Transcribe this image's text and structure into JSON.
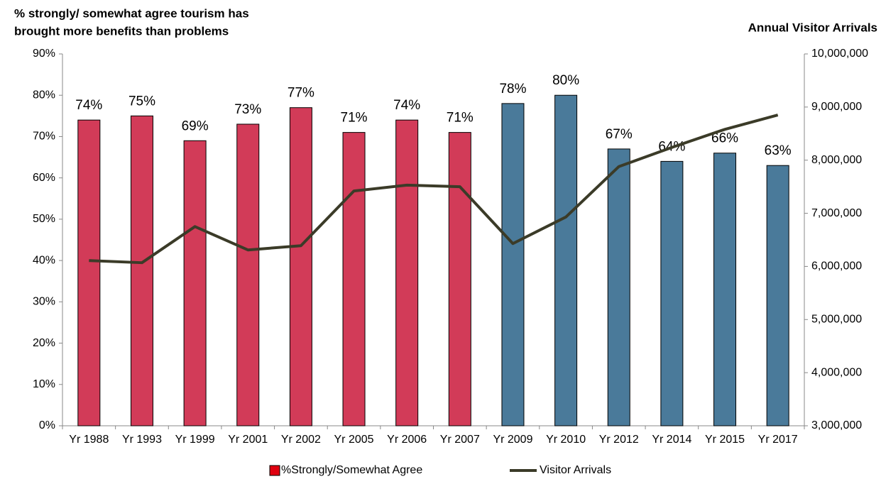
{
  "chart_data": {
    "type": "bar_line",
    "title": [
      "% strongly/ somewhat agree tourism has",
      "brought more benefits than problems"
    ],
    "y2_label": "Annual Visitor Arrivals",
    "categories": [
      "Yr 1988",
      "Yr 1993",
      "Yr 1999",
      "Yr 2001",
      "Yr 2002",
      "Yr 2005",
      "Yr 2006",
      "Yr 2007",
      "Yr 2009",
      "Yr 2010",
      "Yr 2012",
      "Yr 2014",
      "Yr 2015",
      "Yr 2017"
    ],
    "series": [
      {
        "name": "%Strongly/Somewhat Agree",
        "color": "#e00010",
        "type": "bar",
        "bar_colors": [
          "#d23b58",
          "#d23b58",
          "#d23b58",
          "#d23b58",
          "#d23b58",
          "#d23b58",
          "#d23b58",
          "#d23b58",
          "#4a7a9a",
          "#4a7a9a",
          "#4a7a9a",
          "#4a7a9a",
          "#4a7a9a",
          "#4a7a9a"
        ],
        "values": [
          74,
          75,
          69,
          73,
          77,
          71,
          74,
          71,
          78,
          80,
          67,
          64,
          66,
          63
        ],
        "value_labels": [
          "74%",
          "75%",
          "69%",
          "73%",
          "77%",
          "71%",
          "74%",
          "71%",
          "78%",
          "80%",
          "67%",
          "64%",
          "66%",
          "63%"
        ]
      },
      {
        "name": "Visitor Arrivals",
        "color": "#3b3b28",
        "type": "line",
        "axis": "y2",
        "values": [
          6110000,
          6070000,
          6750000,
          6310000,
          6390000,
          7420000,
          7530000,
          7500000,
          6430000,
          6930000,
          7880000,
          8240000,
          8580000,
          8850000
        ]
      }
    ],
    "ylim": [
      0,
      90
    ],
    "yticks": [
      {
        "value": 0,
        "label": "0%"
      },
      {
        "value": 10,
        "label": "10%"
      },
      {
        "value": 20,
        "label": "20%"
      },
      {
        "value": 30,
        "label": "30%"
      },
      {
        "value": 40,
        "label": "40%"
      },
      {
        "value": 50,
        "label": "50%"
      },
      {
        "value": 60,
        "label": "60%"
      },
      {
        "value": 70,
        "label": "70%"
      },
      {
        "value": 80,
        "label": "80%"
      },
      {
        "value": 90,
        "label": "90%"
      }
    ],
    "y2lim": [
      3000000,
      10000000
    ],
    "y2ticks": [
      {
        "value": 3000000,
        "label": "3,000,000"
      },
      {
        "value": 4000000,
        "label": "4,000,000"
      },
      {
        "value": 5000000,
        "label": "5,000,000"
      },
      {
        "value": 6000000,
        "label": "6,000,000"
      },
      {
        "value": 7000000,
        "label": "7,000,000"
      },
      {
        "value": 8000000,
        "label": "8,000,000"
      },
      {
        "value": 9000000,
        "label": "9,000,000"
      },
      {
        "value": 10000000,
        "label": "10,000,000"
      }
    ],
    "legend": "bottom"
  }
}
